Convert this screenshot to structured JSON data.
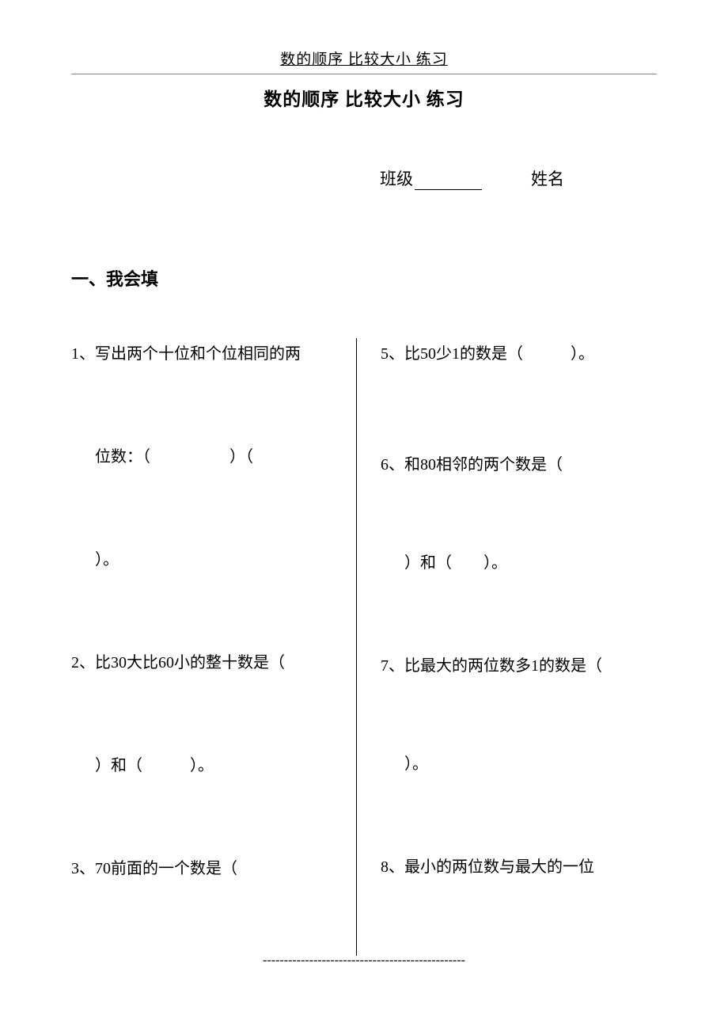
{
  "header": {
    "running_title": "数的顺序 比较大小 练习",
    "main_title": "数的顺序 比较大小 练习"
  },
  "info": {
    "class_label": "班级",
    "name_label": "姓名"
  },
  "section1": {
    "title": "一、我会填"
  },
  "left": {
    "q1_line1": "1、写出两个十位和个位相同的两",
    "q1_line2": "位数：（　　　　　）（",
    "q1_line3": "）。",
    "q2_line1": "2、比30大比60小的整十数是（",
    "q2_line2": "）和（　　　）。",
    "q3_line1": "3、70前面的一个数是（"
  },
  "right": {
    "q5": "5、比50少1的数是（　　　）。",
    "q6_line1": "6、和80相邻的两个数是（",
    "q6_line2": "）和（　　）。",
    "q7_line1": "7、比最大的两位数多1的数是（",
    "q7_line2": "）。",
    "q8": "8、最小的两位数与最大的一位"
  },
  "footer": {
    "dashes": "------------------------------------------------"
  },
  "style": {
    "bg_color": "#ffffff",
    "text_color": "#000000",
    "rule_color": "#888888",
    "body_fontsize": 20,
    "title_fontsize": 23,
    "header_fontsize": 19,
    "section_fontsize": 22
  }
}
